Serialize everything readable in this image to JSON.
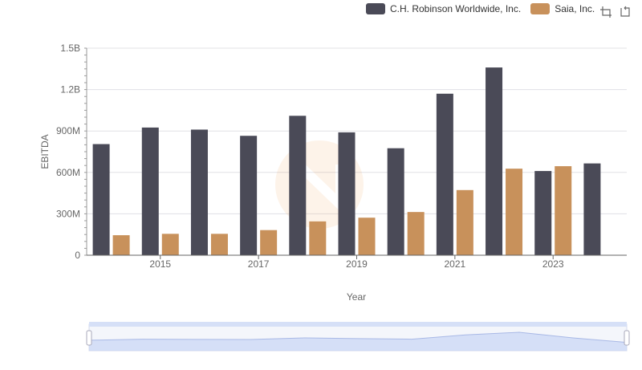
{
  "legend": [
    {
      "name": "C.H. Robinson Worldwide, Inc.",
      "color": "#4a4a57"
    },
    {
      "name": "Saia, Inc.",
      "color": "#c8915b"
    }
  ],
  "toolbox": [
    "zoom-icon",
    "restore-icon"
  ],
  "chart_data": {
    "type": "bar",
    "xlabel": "Year",
    "ylabel": "EBITDA",
    "ylim": [
      0,
      1500000000
    ],
    "yticks": [
      {
        "value": 0,
        "label": "0"
      },
      {
        "value": 300000000,
        "label": "300M"
      },
      {
        "value": 600000000,
        "label": "600M"
      },
      {
        "value": 900000000,
        "label": "900M"
      },
      {
        "value": 1200000000,
        "label": "1.2B"
      },
      {
        "value": 1500000000,
        "label": "1.5B"
      }
    ],
    "categories": [
      "2014",
      "2015",
      "2016",
      "2017",
      "2018",
      "2019",
      "2020",
      "2021",
      "2022",
      "2023",
      "2024"
    ],
    "xtick_labels": [
      "",
      "2015",
      "",
      "2017",
      "",
      "2019",
      "",
      "2021",
      "",
      "2023",
      ""
    ],
    "series": [
      {
        "name": "C.H. Robinson Worldwide, Inc.",
        "color": "#4a4a57",
        "values": [
          805000000,
          925000000,
          910000000,
          865000000,
          1010000000,
          890000000,
          775000000,
          1170000000,
          1360000000,
          610000000,
          665000000
        ]
      },
      {
        "name": "Saia, Inc.",
        "color": "#c8915b",
        "values": [
          145000000,
          155000000,
          155000000,
          182000000,
          245000000,
          272000000,
          313000000,
          472000000,
          627000000,
          645000000,
          null
        ]
      }
    ],
    "grid": true,
    "legend_position": "top-right",
    "data_zoom": true
  }
}
